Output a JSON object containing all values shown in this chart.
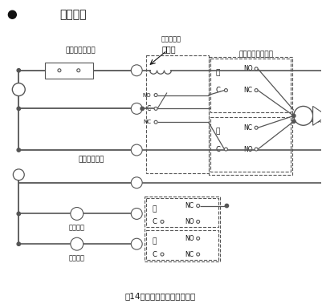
{
  "title": "配線端子",
  "caption": "図14　内部結線と外部結線例",
  "bg_color": "#ffffff",
  "lc": "#555555",
  "label_niichi": "二位置式調節器",
  "label_tanshi": "端子台番号",
  "label_relay": "リレー",
  "label_micro": "マイクロスイッチ",
  "label_earth": "アース用端子",
  "label_zenhe": "全閉信号",
  "label_zenkai": "全開信号"
}
